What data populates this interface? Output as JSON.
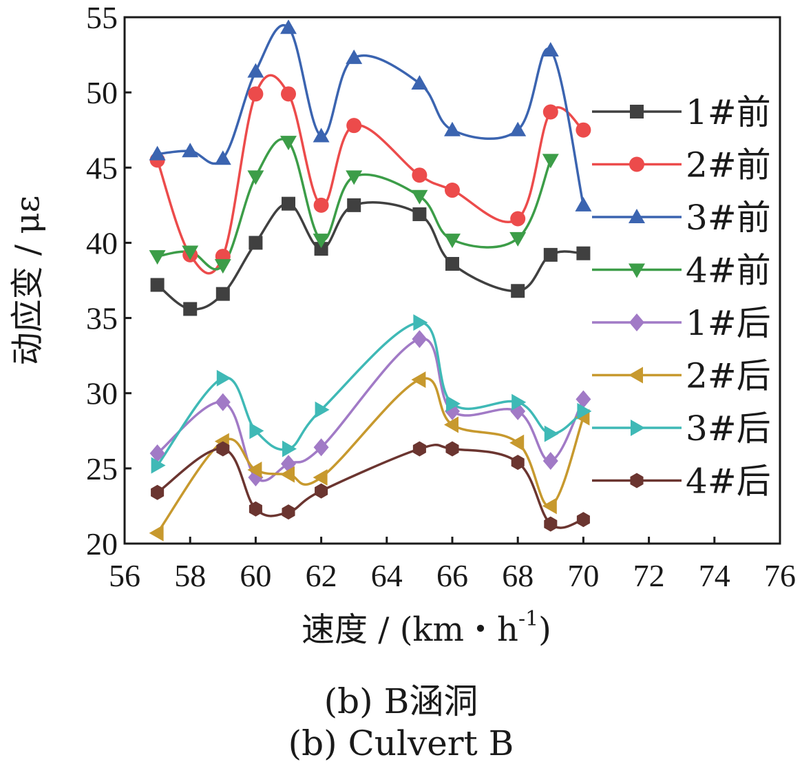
{
  "chart_data": {
    "type": "line",
    "xlabel": "速度 / (km・h",
    "xlabel_sup": "-1",
    "xlabel_close": ")",
    "ylabel": "动应变 / με",
    "xlim": [
      56,
      76
    ],
    "ylim": [
      20,
      55
    ],
    "xticks": [
      "56",
      "58",
      "60",
      "62",
      "64",
      "66",
      "68",
      "70",
      "72",
      "74",
      "76"
    ],
    "yticks": [
      "20",
      "25",
      "30",
      "35",
      "40",
      "45",
      "50",
      "55"
    ],
    "legend_position": "right",
    "x": [
      57,
      58,
      59,
      60,
      61,
      62,
      63,
      65,
      66,
      68,
      69,
      70
    ],
    "series": [
      {
        "name": "1#前",
        "color": "#404040",
        "marker": "square",
        "x": [
          57,
          58,
          59,
          60,
          61,
          62,
          63,
          65,
          66,
          68,
          69,
          70
        ],
        "values": [
          37.2,
          35.6,
          36.6,
          40.0,
          42.6,
          39.6,
          42.5,
          41.9,
          38.6,
          36.8,
          39.2,
          39.3
        ]
      },
      {
        "name": "2#前",
        "color": "#ec4b4b",
        "marker": "circle",
        "x": [
          57,
          58,
          59,
          60,
          61,
          62,
          63,
          65,
          66,
          68,
          69,
          70
        ],
        "values": [
          45.5,
          39.2,
          39.1,
          49.9,
          49.9,
          42.5,
          47.8,
          44.5,
          43.5,
          41.6,
          48.7,
          47.5
        ]
      },
      {
        "name": "3#前",
        "color": "#3b64b0",
        "marker": "triangle-up",
        "x": [
          57,
          58,
          59,
          60,
          61,
          62,
          63,
          65,
          66,
          68,
          69,
          70
        ],
        "values": [
          45.9,
          46.1,
          45.6,
          51.4,
          54.3,
          47.1,
          52.3,
          50.6,
          47.5,
          47.5,
          52.8,
          42.5
        ]
      },
      {
        "name": "4#前",
        "color": "#3c9d48",
        "marker": "triangle-down",
        "x": [
          57,
          58,
          59,
          60,
          61,
          62,
          63,
          65,
          66,
          68,
          69,
          70
        ],
        "values": [
          39.1,
          39.4,
          38.5,
          44.4,
          46.7,
          40.2,
          44.4,
          43.1,
          40.2,
          40.3,
          45.5,
          null
        ]
      },
      {
        "name": "1#后",
        "color": "#a17ac6",
        "marker": "diamond",
        "x": [
          57,
          58,
          59,
          60,
          61,
          62,
          63,
          65,
          66,
          68,
          69,
          70
        ],
        "values": [
          26.0,
          null,
          29.4,
          24.4,
          25.3,
          26.4,
          null,
          33.6,
          28.8,
          28.8,
          25.5,
          29.6
        ]
      },
      {
        "name": "2#后",
        "color": "#c7992e",
        "marker": "triangle-left",
        "x": [
          57,
          58,
          59,
          60,
          61,
          62,
          63,
          65,
          66,
          68,
          69,
          70
        ],
        "values": [
          20.7,
          null,
          26.8,
          24.9,
          24.6,
          24.4,
          null,
          30.9,
          27.9,
          26.7,
          22.5,
          28.4
        ]
      },
      {
        "name": "3#后",
        "color": "#3fb9b6",
        "marker": "triangle-right",
        "x": [
          57,
          58,
          59,
          60,
          61,
          62,
          63,
          65,
          66,
          68,
          69,
          70
        ],
        "values": [
          25.2,
          null,
          31.0,
          27.5,
          26.3,
          28.9,
          null,
          34.7,
          29.3,
          29.4,
          27.3,
          28.8
        ]
      },
      {
        "name": "4#后",
        "color": "#6b3530",
        "marker": "hexagon",
        "x": [
          57,
          58,
          59,
          60,
          61,
          62,
          63,
          65,
          66,
          68,
          69,
          70
        ],
        "values": [
          23.4,
          null,
          26.3,
          22.3,
          22.1,
          23.5,
          null,
          26.3,
          26.3,
          25.4,
          21.3,
          21.6
        ]
      }
    ]
  },
  "caption": {
    "line1": "(b)  B涵洞",
    "line2": "(b)  Culvert B"
  }
}
